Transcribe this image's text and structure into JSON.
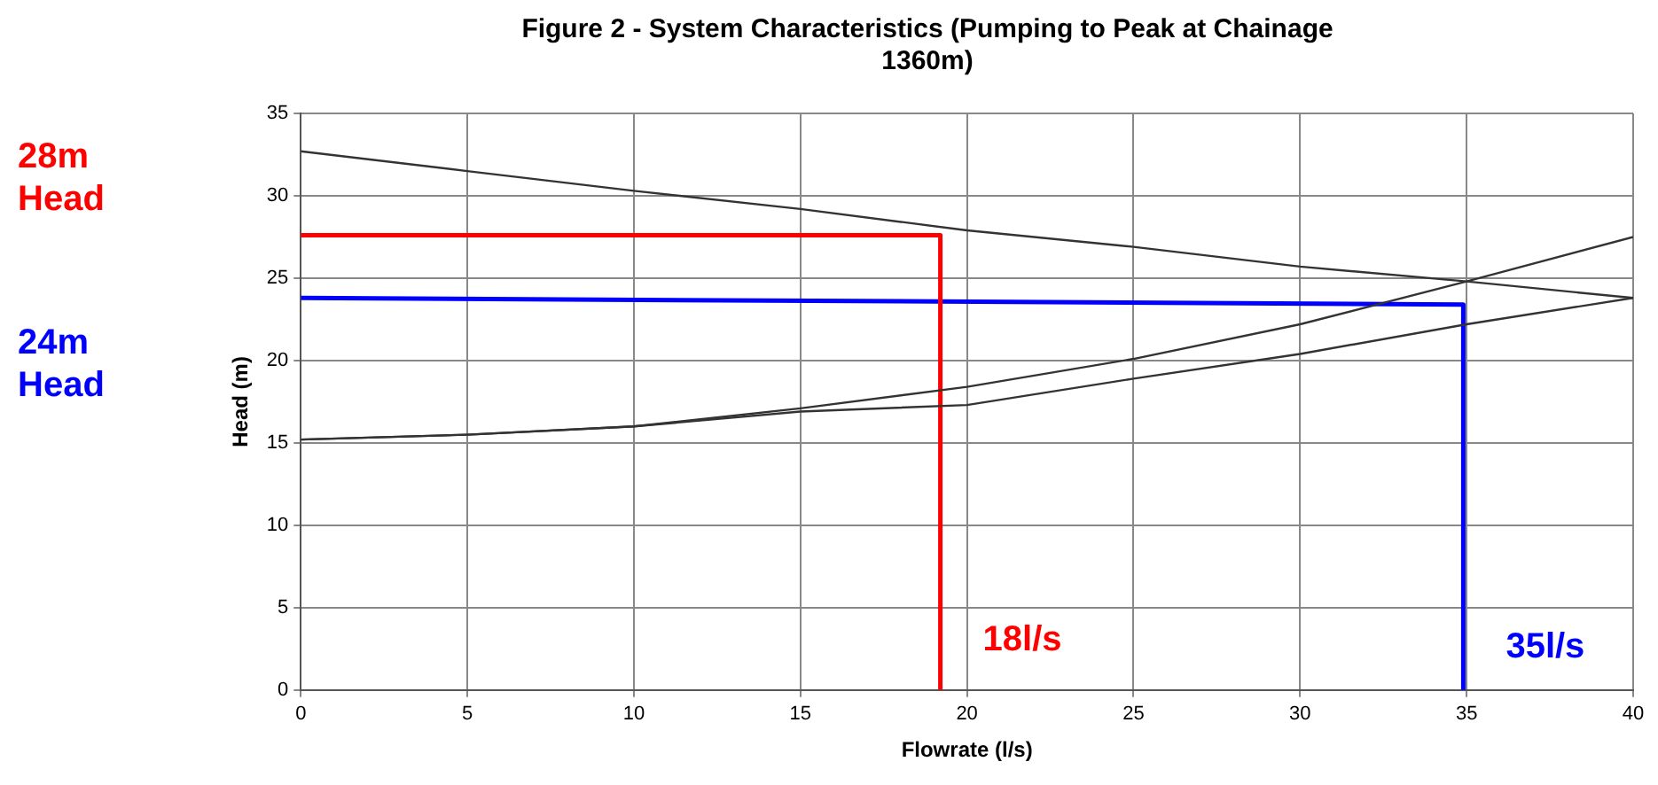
{
  "chart_data": {
    "type": "line",
    "title": "Figure 2 - System Characteristics (Pumping to Peak at Chainage 1360m)",
    "xlabel": "Flowrate (l/s)",
    "ylabel": "Head (m)",
    "xlim": [
      0,
      40
    ],
    "xticks": [
      0,
      5,
      10,
      15,
      20,
      25,
      30,
      35,
      40
    ],
    "ylim": [
      0,
      35
    ],
    "yticks": [
      0,
      5,
      10,
      15,
      20,
      25,
      30,
      35
    ],
    "grid": true,
    "marker": "none",
    "x": [
      0,
      5,
      10,
      15,
      20,
      25,
      30,
      35,
      40
    ],
    "series": [
      {
        "color": "#333333",
        "values": [
          32.7,
          31.5,
          30.3,
          29.2,
          27.9,
          26.9,
          25.7,
          24.8,
          23.8
        ]
      },
      {
        "color": "#333333",
        "values": [
          15.2,
          15.5,
          16.0,
          17.1,
          18.4,
          20.1,
          22.2,
          24.8,
          27.5
        ]
      },
      {
        "color": "#333333",
        "values": [
          15.2,
          15.5,
          16.0,
          16.9,
          17.3,
          18.9,
          20.4,
          22.2,
          23.8
        ]
      },
      {
        "name": "28m Head",
        "color": "#ff0000",
        "x": [
          0,
          19.2,
          19.2
        ],
        "values": [
          27.6,
          27.6,
          0
        ]
      },
      {
        "name": "24m Head",
        "color": "#0000ff",
        "x": [
          0,
          34.9,
          34.9
        ],
        "values": [
          23.8,
          23.4,
          0
        ]
      }
    ],
    "annotations": [
      "18l/s",
      "35l/s"
    ]
  }
}
